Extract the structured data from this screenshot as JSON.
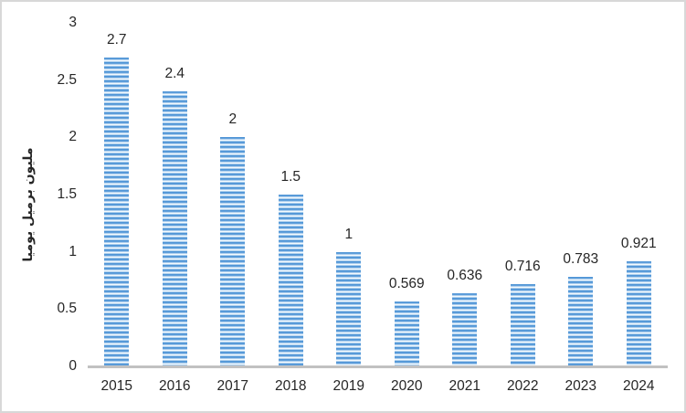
{
  "chart_data": {
    "type": "bar",
    "title": "",
    "xlabel": "",
    "ylabel": "مليون برميل يوميا",
    "categories": [
      "2015",
      "2016",
      "2017",
      "2018",
      "2019",
      "2020",
      "2021",
      "2022",
      "2023",
      "2024"
    ],
    "values": [
      2.7,
      2.4,
      2,
      1.5,
      1,
      0.569,
      0.636,
      0.716,
      0.783,
      0.921
    ],
    "value_labels": [
      "2.7",
      "2.4",
      "2",
      "1.5",
      "1",
      "0.569",
      "0.636",
      "0.716",
      "0.783",
      "0.921"
    ],
    "ylim": [
      0,
      3
    ],
    "yticks": [
      {
        "value": 3,
        "label": "3"
      },
      {
        "value": 2.5,
        "label": "2.5"
      },
      {
        "value": 2,
        "label": "2"
      },
      {
        "value": 1.5,
        "label": "1.5"
      },
      {
        "value": 1,
        "label": "1"
      },
      {
        "value": 0.5,
        "label": "0.5"
      },
      {
        "value": 0,
        "label": "0"
      }
    ],
    "grid": false,
    "legend": false,
    "bar_fill_style": "horizontal-stripes"
  },
  "colors": {
    "background": "#FFFFFF",
    "frame_border": "#D8D8D8",
    "text": "#262626",
    "axis_line": "#C1C1C1",
    "bar_stripe_dark": "#4E94D6",
    "bar_stripe_mid": "#8FBCE6",
    "bar_stripe_mid2": "#A9CDEC",
    "bar_stripe_light": "#F4FAFE"
  }
}
